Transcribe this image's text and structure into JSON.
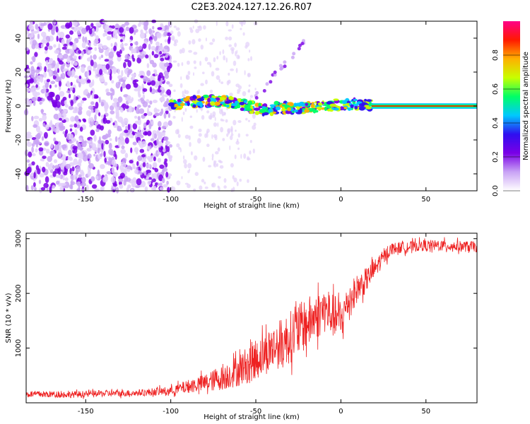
{
  "title": "C2E3.2024.127.12.26.R07",
  "chart_data": [
    {
      "type": "heatmap",
      "xlabel": "Height of straight line (km)",
      "ylabel": "Frequency (Hz)",
      "xlim": [
        -185,
        80
      ],
      "ylim": [
        -50,
        50
      ],
      "x_ticks": [
        -150,
        -100,
        -50,
        0,
        50
      ],
      "y_ticks": [
        -40,
        -20,
        0,
        20,
        40
      ],
      "colorbar": {
        "label": "Normalized spectral amplitude",
        "range": [
          0,
          1
        ],
        "ticks": [
          0.0,
          0.2,
          0.4,
          0.6,
          0.8
        ],
        "colors": [
          "#ffffff",
          "#c9a3f5",
          "#7a00e6",
          "#2f0ef0",
          "#00c8ff",
          "#00ff66",
          "#c8ff00",
          "#ffb000",
          "#ff1a00",
          "#ff0088"
        ]
      },
      "features": {
        "carrier_frequency_hz": 0,
        "noise_region_km": [
          -185,
          -100
        ],
        "scintillation_region_km": [
          -100,
          18
        ],
        "stable_carrier_region_km": [
          18,
          80
        ],
        "diagonal_feature": {
          "from": [
            -50,
            5
          ],
          "to": [
            -20,
            40
          ]
        }
      }
    },
    {
      "type": "line",
      "xlabel": "Height of straight line (km)",
      "ylabel": "SNR (10 * v/v)",
      "xlim": [
        -185,
        80
      ],
      "ylim": [
        0,
        3100
      ],
      "x_ticks": [
        -150,
        -100,
        -50,
        0,
        50
      ],
      "y_ticks": [
        1000,
        2000,
        3000
      ],
      "series": [
        {
          "color": "#ee2222",
          "x": [
            -185,
            -160,
            -140,
            -120,
            -100,
            -90,
            -80,
            -70,
            -60,
            -50,
            -40,
            -30,
            -20,
            -10,
            0,
            5,
            10,
            15,
            20,
            25,
            30,
            40,
            50,
            60,
            70,
            80
          ],
          "y": [
            160,
            150,
            170,
            180,
            220,
            300,
            360,
            450,
            600,
            800,
            1000,
            1200,
            1450,
            1700,
            1500,
            1900,
            2100,
            2250,
            2450,
            2650,
            2820,
            2850,
            2880,
            2870,
            2860,
            2850
          ],
          "noise_amplitude": [
            60,
            60,
            60,
            60,
            80,
            120,
            170,
            220,
            300,
            380,
            420,
            480,
            480,
            420,
            380,
            300,
            260,
            220,
            180,
            140,
            110,
            100,
            100,
            100,
            100,
            100
          ]
        }
      ]
    }
  ]
}
